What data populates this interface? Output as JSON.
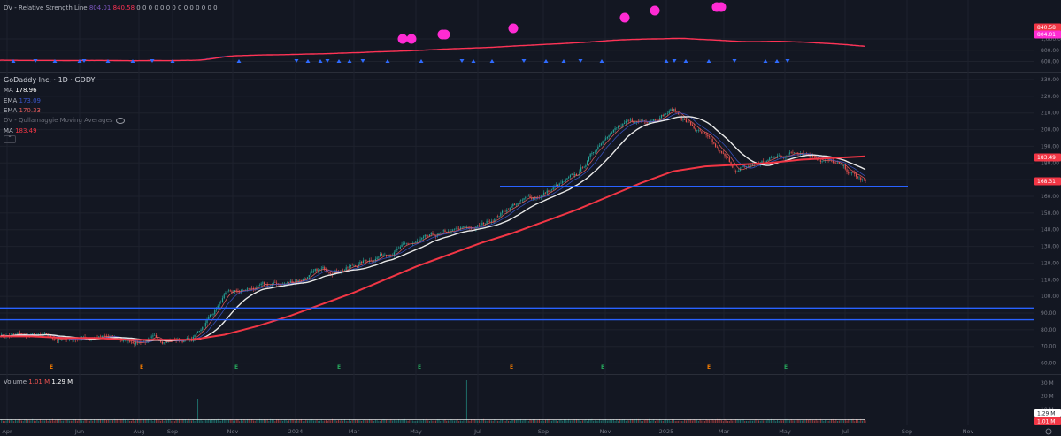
{
  "colors": {
    "bg": "#131722",
    "grid": "#1e222d",
    "axis_text": "#787b86",
    "blue_line": "#2962ff",
    "ema_blue": "#3b55c9",
    "ema_red": "#e85d5d",
    "ma_red": "#f23645",
    "ma_white": "#e8e8e8",
    "rs_red": "#ff3355",
    "rs_fill": "#3c4fb6",
    "magenta": "#ff2bd3",
    "up": "#26a69a",
    "down": "#ef5350",
    "earnings_orange": "#f57c00",
    "earnings_green": "#26a65b"
  },
  "rs_pane": {
    "title": "DV - Relative Strength Line",
    "value1": "804.01",
    "value2": "840.58",
    "zeros": "0 0 0 0 0 0 0 0 0 0 0 0 0 0",
    "ticks": [
      "1,000.00",
      "800.00",
      "600.00"
    ],
    "tag1": "840.58",
    "tag2": "804.01"
  },
  "main_pane": {
    "symbol": "GoDaddy Inc. · 1D · GDDY",
    "ma_label": "MA",
    "ma_value": "178.96",
    "ema1_label": "EMA",
    "ema1_value": "173.09",
    "ema2_label": "EMA",
    "ema2_value": "170.33",
    "study_label": "DV - Qullamaggie Moving Averages",
    "ma2_label": "MA",
    "ma2_value": "183.49",
    "price_tag_ma": "183.49",
    "price_tag_close": "168.31"
  },
  "volume_pane": {
    "label": "Volume",
    "v1": "1.01 M",
    "v2": "1.29 M",
    "ticks": [
      "30 M",
      "20 M",
      "10 M"
    ],
    "tag1": "1.29 M",
    "tag2": "1.01 M"
  },
  "time_axis": {
    "labels": [
      "Apr",
      "Jun",
      "Aug",
      "Sep",
      "Nov",
      "2024",
      "Mar",
      "May",
      "Jul",
      "Sep",
      "Nov",
      "2025",
      "Mar",
      "May",
      "Jul",
      "Sep",
      "Nov"
    ]
  },
  "chart_data": {
    "type": "line",
    "title": "GoDaddy Inc. · 1D · GDDY",
    "y_ticks": [
      230,
      220,
      210,
      200,
      190,
      180,
      170,
      160,
      150,
      140,
      130,
      120,
      110,
      100,
      90,
      80,
      70,
      60
    ],
    "ylim": [
      57,
      233
    ],
    "x": [
      "Apr 2023",
      "May 2023",
      "Jun 2023",
      "Jul 2023",
      "Aug 2023",
      "Sep 2023",
      "Oct 2023",
      "Nov 2023",
      "Dec 2023",
      "Jan 2024",
      "Feb 2024",
      "Mar 2024",
      "Apr 2024",
      "May 2024",
      "Jun 2024",
      "Jul 2024",
      "Aug 2024",
      "Sep 2024",
      "Oct 2024",
      "Nov 2024",
      "Dec 2024",
      "Jan 2025",
      "Feb 2025",
      "Mar 2025",
      "Apr 2025",
      "May 2025",
      "Jun 2025",
      "Jul 2025"
    ],
    "series": [
      {
        "name": "GDDY",
        "values": [
          77,
          76,
          74,
          76,
          73,
          74,
          74,
          100,
          105,
          108,
          115,
          118,
          126,
          132,
          138,
          142,
          155,
          162,
          172,
          200,
          205,
          212,
          195,
          175,
          182,
          188,
          180,
          168
        ]
      },
      {
        "name": "MA",
        "values": [
          76,
          76,
          75,
          75,
          74,
          74,
          74,
          77,
          82,
          88,
          95,
          102,
          110,
          118,
          125,
          132,
          138,
          145,
          152,
          160,
          168,
          175,
          178,
          179,
          180,
          182,
          183,
          184
        ]
      }
    ],
    "horizontal_lines": [
      166,
      93,
      86
    ],
    "earnings_markers": [
      "E",
      "E",
      "E",
      "E",
      "E",
      "E",
      "E",
      "E",
      "E",
      "E"
    ]
  }
}
